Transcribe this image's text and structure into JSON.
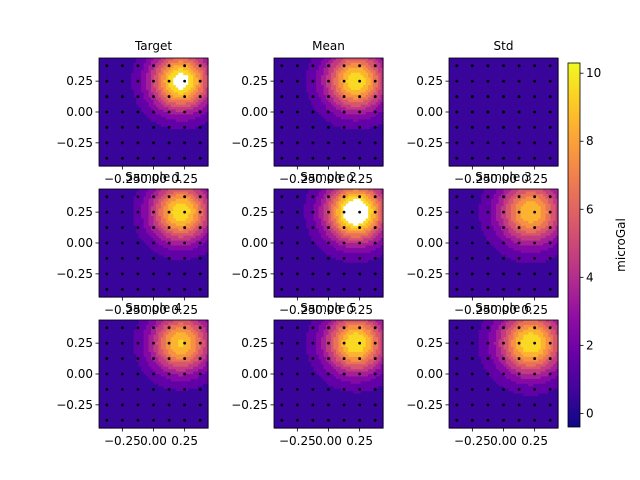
{
  "chart_data": {
    "type": "heatmap",
    "grid": {
      "x": [
        -0.375,
        -0.3125,
        -0.25,
        -0.1875,
        -0.125,
        -0.0625,
        0.0,
        0.0625,
        0.125,
        0.1875,
        0.25,
        0.3125,
        0.375
      ],
      "y": [
        -0.375,
        -0.3125,
        -0.25,
        -0.1875,
        -0.125,
        -0.0625,
        0.0,
        0.0625,
        0.125,
        0.1875,
        0.25,
        0.3125,
        0.375
      ],
      "source_center": [
        0.22,
        0.25
      ]
    },
    "xlim": [
      -0.4375,
      0.4375
    ],
    "ylim": [
      -0.4375,
      0.4375
    ],
    "xticks": [
      -0.25,
      0.0,
      0.25
    ],
    "xtick_labels": [
      "−0.25",
      "0.00",
      "0.25"
    ],
    "yticks": [
      -0.25,
      0.0,
      0.25
    ],
    "ytick_labels": [
      "−0.25",
      "0.00",
      "0.25"
    ],
    "contour_levels": [
      0,
      1,
      2,
      3,
      4,
      5,
      6,
      7,
      8,
      9,
      10
    ],
    "colormap": "plasma",
    "colormap_stops": [
      "#0d0887",
      "#41049d",
      "#6a00a8",
      "#8f0da4",
      "#b12a90",
      "#cc4778",
      "#e16462",
      "#f2844b",
      "#fca636",
      "#fcce25",
      "#f0f921"
    ],
    "panels": [
      {
        "title": "Target",
        "peak": 10.4,
        "width": 0.17,
        "baseline": 0.3,
        "show_x_ticks": true
      },
      {
        "title": "Mean",
        "peak": 9.4,
        "width": 0.17,
        "baseline": 0.4,
        "show_x_ticks": true
      },
      {
        "title": "Std",
        "peak": 0.15,
        "width": 0.2,
        "baseline": 0.0,
        "show_x_ticks": true
      },
      {
        "title": "Sample 1",
        "peak": 9.5,
        "width": 0.17,
        "baseline": 0.3,
        "show_x_ticks": true
      },
      {
        "title": "Sample 2",
        "peak": 11.5,
        "width": 0.17,
        "baseline": 0.4,
        "show_x_ticks": true
      },
      {
        "title": "Sample 3",
        "peak": 8.5,
        "width": 0.18,
        "baseline": 0.4,
        "show_x_ticks": true
      },
      {
        "title": "Sample 4",
        "peak": 8.8,
        "width": 0.17,
        "baseline": 0.3,
        "show_x_ticks": true
      },
      {
        "title": "Sample 5",
        "peak": 9.6,
        "width": 0.17,
        "baseline": 0.4,
        "show_x_ticks": true
      },
      {
        "title": "Sample 6",
        "peak": 9.5,
        "width": 0.18,
        "baseline": 0.4,
        "show_x_ticks": true
      }
    ],
    "colorbar": {
      "label": "microGal",
      "range": [
        -0.4,
        10.3
      ],
      "ticks": [
        0,
        2,
        4,
        6,
        8,
        10
      ]
    }
  }
}
